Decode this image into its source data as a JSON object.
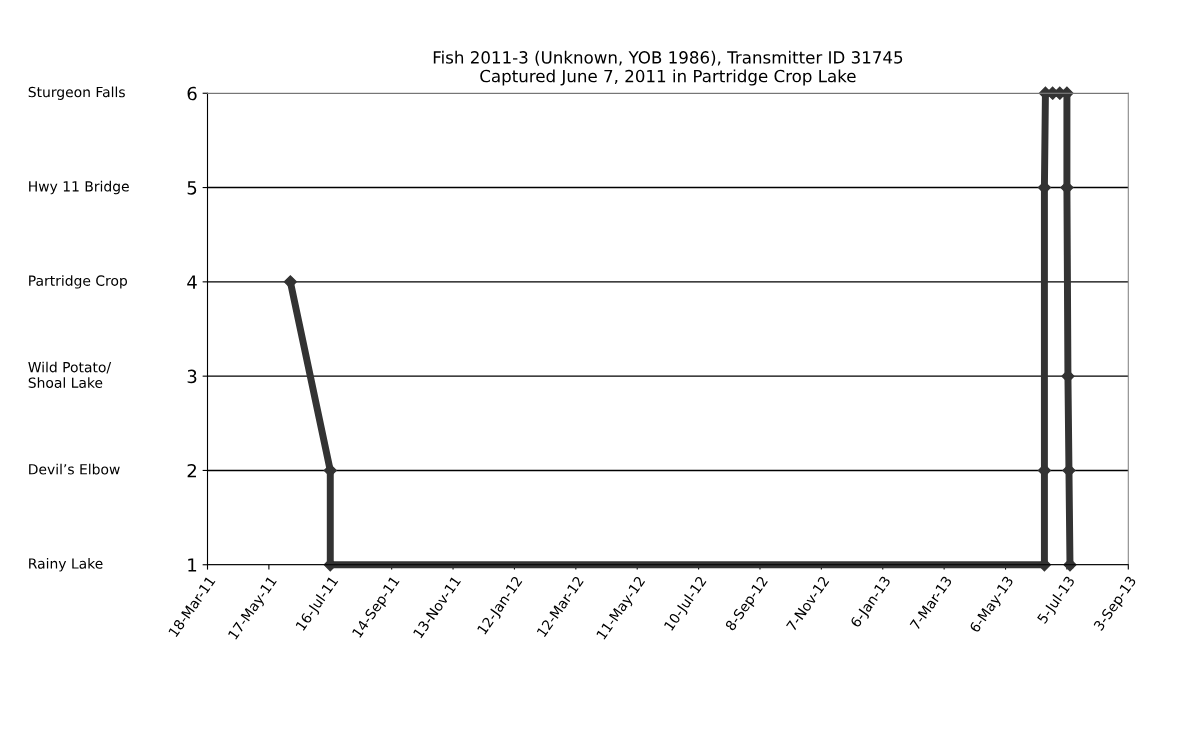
{
  "chart_data": {
    "type": "line",
    "title": "Fish 2011-3 (Unknown, YOB 1986), Transmitter ID 31745\nCaptured June 7, 2011 in Partridge Crop Lake",
    "x": [
      "2011-06-07",
      "2011-07-16",
      "2011-07-16",
      "2013-06-13",
      "2013-06-13",
      "2013-06-13",
      "2013-06-14",
      "2013-06-21",
      "2013-06-28",
      "2013-07-05",
      "2013-07-05",
      "2013-07-06",
      "2013-07-07",
      "2013-07-08"
    ],
    "series": [
      {
        "color": "#333333",
        "values": [
          4,
          2,
          1,
          1,
          2,
          5,
          6,
          6,
          6,
          6,
          5,
          3,
          2,
          1
        ]
      }
    ],
    "xlim": [
      "2011-03-18",
      "2013-09-03"
    ],
    "xticks": [
      {
        "value": "2011-03-18",
        "label": "18-Mar-11"
      },
      {
        "value": "2011-05-17",
        "label": "17-May-11"
      },
      {
        "value": "2011-07-16",
        "label": "16-Jul-11"
      },
      {
        "value": "2011-09-14",
        "label": "14-Sep-11"
      },
      {
        "value": "2011-11-13",
        "label": "13-Nov-11"
      },
      {
        "value": "2012-01-12",
        "label": "12-Jan-12"
      },
      {
        "value": "2012-03-12",
        "label": "12-Mar-12"
      },
      {
        "value": "2012-05-11",
        "label": "11-May-12"
      },
      {
        "value": "2012-07-10",
        "label": "10-Jul-12"
      },
      {
        "value": "2012-09-08",
        "label": "8-Sep-12"
      },
      {
        "value": "2012-11-07",
        "label": "7-Nov-12"
      },
      {
        "value": "2013-01-06",
        "label": "6-Jan-13"
      },
      {
        "value": "2013-03-07",
        "label": "7-Mar-13"
      },
      {
        "value": "2013-05-06",
        "label": "6-May-13"
      },
      {
        "value": "2013-07-05",
        "label": "5-Jul-13"
      },
      {
        "value": "2013-09-03",
        "label": "3-Sep-13"
      }
    ],
    "ylim": [
      1,
      6
    ],
    "yticks": [
      1,
      2,
      3,
      4,
      5,
      6
    ],
    "annotations": [
      "Rainy Lake",
      "Devil’s Elbow",
      "Wild Potato/\nShoal Lake",
      "Partridge Crop",
      "Hwy 11 Bridge",
      "Sturgeon Falls"
    ],
    "grid": "y",
    "marker": "diamond",
    "line_style": "solid",
    "legend": false
  }
}
